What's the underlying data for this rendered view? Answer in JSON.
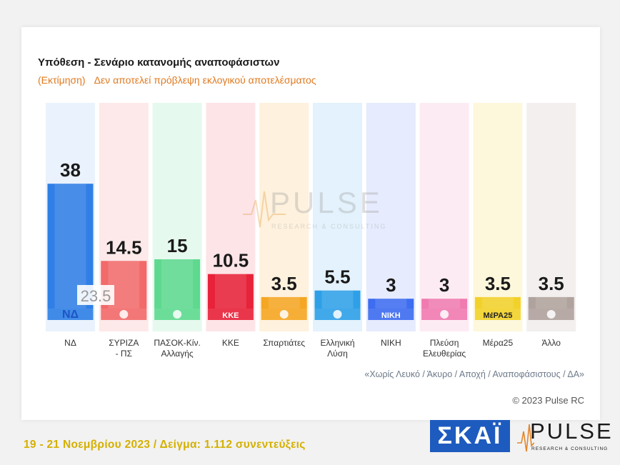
{
  "header": {
    "title": "Υπόθεση - Σενάριο κατανομής αναποφάσιστων",
    "subtitle_estimate": "(Εκτίμηση)",
    "subtitle_note": "Δεν αποτελεί πρόβλεψη εκλογικού αποτελέσματος"
  },
  "watermark": {
    "word": "PULSE",
    "sub": "RESEARCH & CONSULTING"
  },
  "chart_data": {
    "type": "bar",
    "categories": [
      "ΝΔ",
      "ΣΥΡΙΖΑ - ΠΣ",
      "ΠΑΣΟΚ-Κίν. Αλλαγής",
      "ΚΚΕ",
      "Σπαρτιάτες",
      "Ελληνική Λύση",
      "ΝΙΚΗ",
      "Πλεύση Ελευθερίας",
      "Μέρα25",
      "Άλλο"
    ],
    "category_lines": [
      [
        "ΝΔ"
      ],
      [
        "ΣΥΡΙΖΑ",
        "- ΠΣ"
      ],
      [
        "ΠΑΣΟΚ-Κίν.",
        "Αλλαγής"
      ],
      [
        "ΚΚΕ"
      ],
      [
        "Σπαρτιάτες"
      ],
      [
        "Ελληνική",
        "Λύση"
      ],
      [
        "ΝΙΚΗ"
      ],
      [
        "Πλεύση",
        "Ελευθερίας"
      ],
      [
        "Μέρα25"
      ],
      [
        "Άλλο"
      ]
    ],
    "values": [
      38,
      14.5,
      15,
      10.5,
      3.5,
      5.5,
      3,
      3,
      3.5,
      3.5
    ],
    "value_labels": [
      "38",
      "14.5",
      "15",
      "10.5",
      "3.5",
      "5.5",
      "3",
      "3",
      "3.5",
      "3.5"
    ],
    "inner_annotation": {
      "category": "ΝΔ",
      "label": "23.5"
    },
    "logo_texts": [
      "ΝΔ",
      "",
      "",
      "ΚΚΕ",
      "",
      "",
      "ΝΙΚΗ",
      "",
      "ΜέΡΑ25",
      ""
    ],
    "colors": [
      "#2f7fe6",
      "#f26a6a",
      "#5ed98f",
      "#e8223a",
      "#f5a623",
      "#2fa0e8",
      "#3d6df0",
      "#f07bb0",
      "#f2d12a",
      "#b0a29d"
    ],
    "column_colors": [
      "#eaf2fd",
      "#fde9e9",
      "#e6f9ee",
      "#fde4e7",
      "#fef1dd",
      "#e3f2fc",
      "#e6ebfd",
      "#fdebf3",
      "#fdf7dc",
      "#f2efee"
    ],
    "ylim": [
      0,
      40
    ],
    "grid": false
  },
  "footnote": "«Χωρίς Λευκό / Άκυρο / Αποχή / Αναποφάσιστους / ΔΑ»",
  "copyright": "© 2023 Pulse RC",
  "footer": "19 - 21  Νοεμβρίου  2023  /  Δείγμα:  1.112  συνεντεύξεις",
  "logos": {
    "skai": "ΣΚΑΪ",
    "pulse_word": "PULSE",
    "pulse_sub": "RESEARCH & CONSULTING"
  }
}
